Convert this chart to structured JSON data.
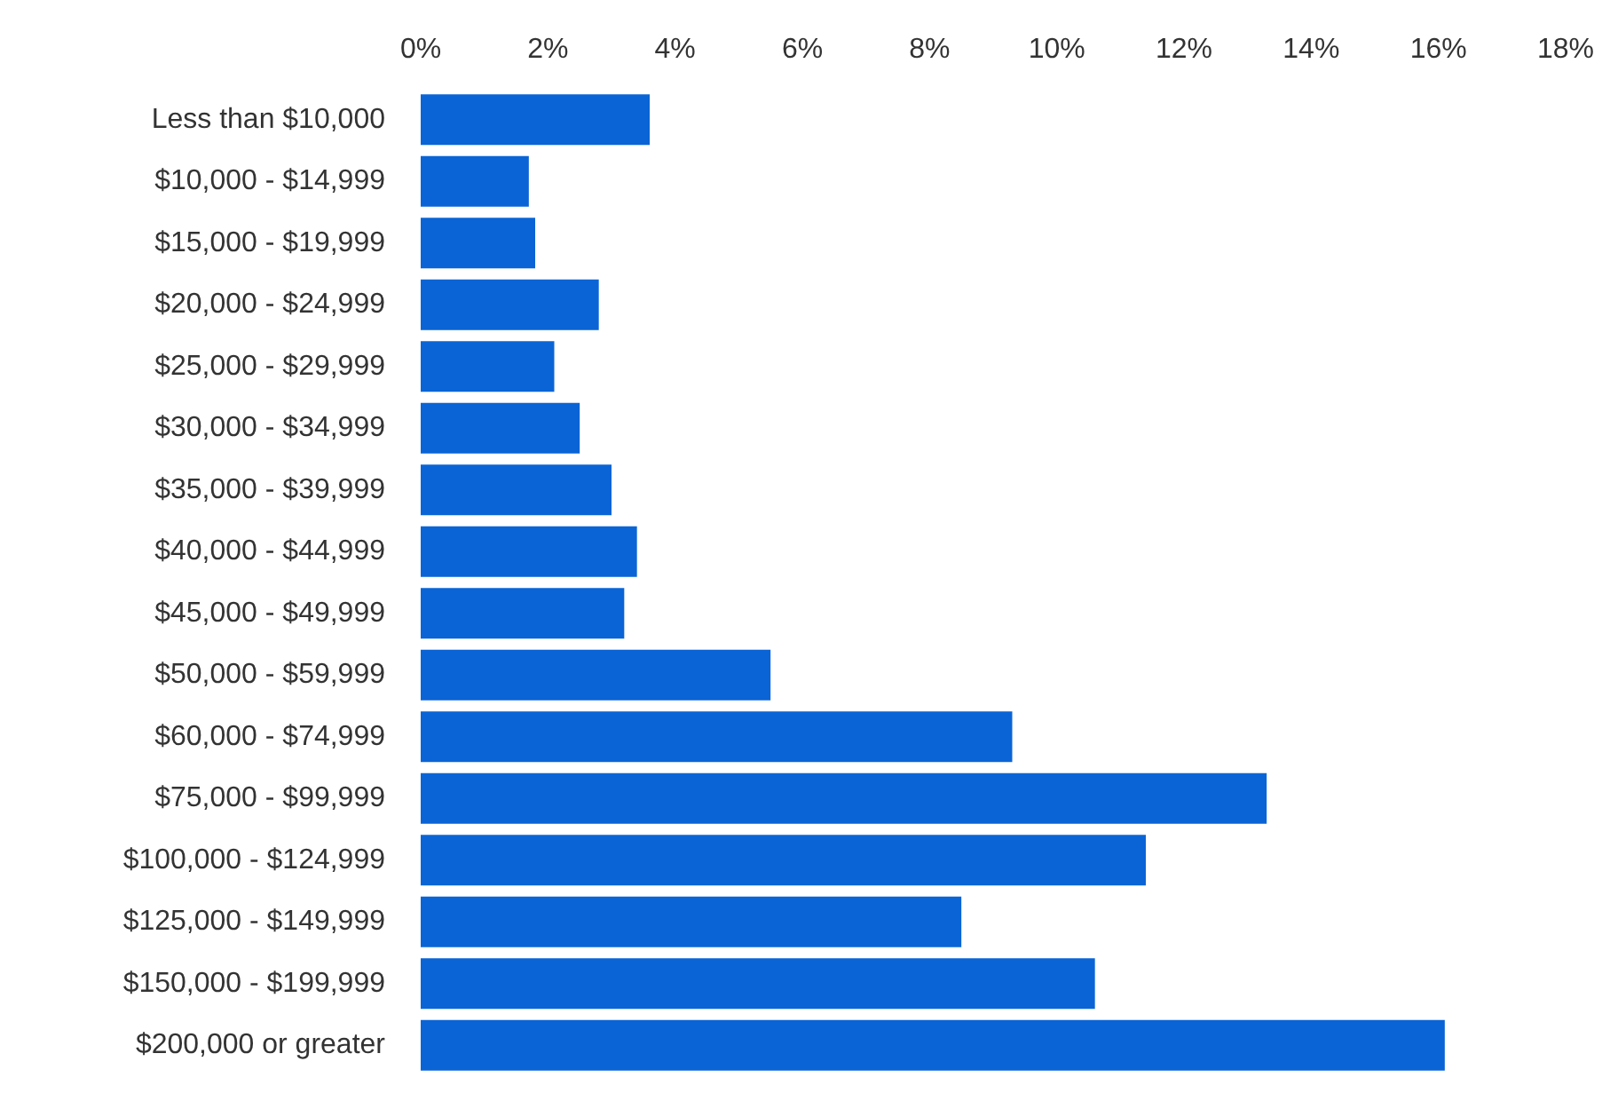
{
  "chart_data": {
    "type": "bar",
    "orientation": "horizontal",
    "categories": [
      "Less than $10,000",
      "$10,000 - $14,999",
      "$15,000 - $19,999",
      "$20,000 - $24,999",
      "$25,000 - $29,999",
      "$30,000 - $34,999",
      "$35,000 - $39,999",
      "$40,000 - $44,999",
      "$45,000 - $49,999",
      "$50,000 - $59,999",
      "$60,000 - $74,999",
      "$75,000 - $99,999",
      "$100,000 - $124,999",
      "$125,000 - $149,999",
      "$150,000 - $199,999",
      "$200,000 or greater"
    ],
    "values": [
      3.6,
      1.7,
      1.8,
      2.8,
      2.1,
      2.5,
      3.0,
      3.4,
      3.2,
      5.5,
      9.3,
      13.3,
      11.4,
      8.5,
      10.6,
      16.1
    ],
    "color": "#0a64d6",
    "xlim": [
      0,
      18
    ],
    "xticks": [
      {
        "value": 0,
        "label": "0%"
      },
      {
        "value": 2,
        "label": "2%"
      },
      {
        "value": 4,
        "label": "4%"
      },
      {
        "value": 6,
        "label": "6%"
      },
      {
        "value": 8,
        "label": "8%"
      },
      {
        "value": 10,
        "label": "10%"
      },
      {
        "value": 12,
        "label": "12%"
      },
      {
        "value": 14,
        "label": "14%"
      },
      {
        "value": 16,
        "label": "16%"
      },
      {
        "value": 18,
        "label": "18%"
      }
    ],
    "grid": false
  }
}
